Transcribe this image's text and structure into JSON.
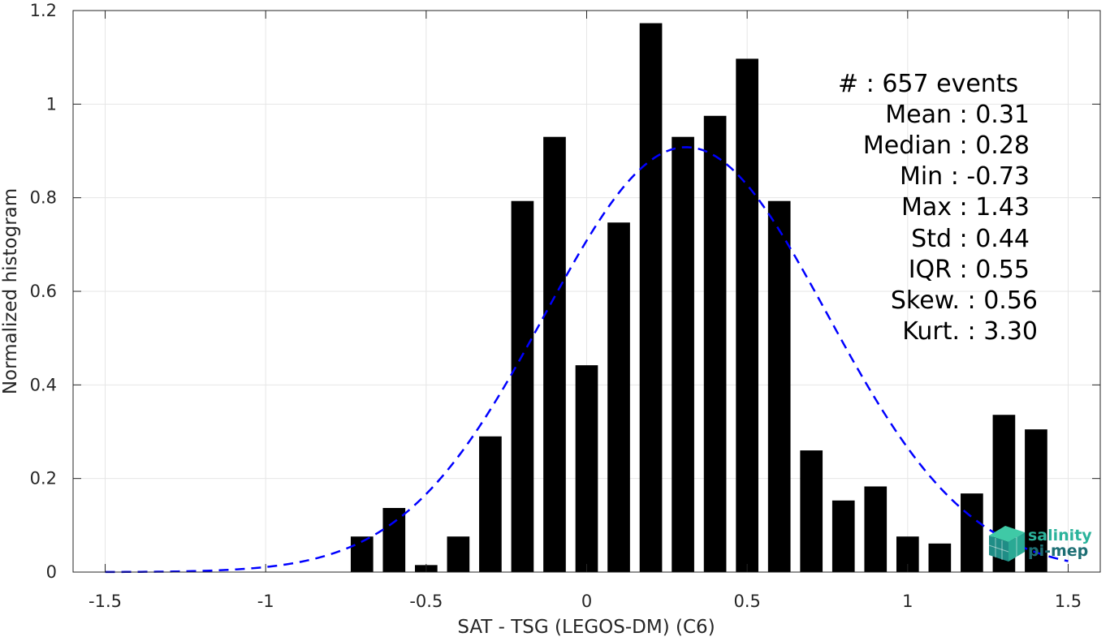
{
  "chart_data": {
    "type": "bar",
    "xlabel": "SAT - TSG (LEGOS-DM) (C6)",
    "ylabel": "Normalized histogram",
    "xlim": [
      -1.6,
      1.6
    ],
    "ylim": [
      0,
      1.2
    ],
    "xticks": [
      -1.5,
      -1,
      -0.5,
      0,
      0.5,
      1,
      1.5
    ],
    "xtick_labels": [
      "-1.5",
      "-1",
      "-0.5",
      "0",
      "0.5",
      "1",
      "1.5"
    ],
    "yticks": [
      0,
      0.2,
      0.4,
      0.6,
      0.8,
      1,
      1.2
    ],
    "ytick_labels": [
      "0",
      "0.2",
      "0.4",
      "0.6",
      "0.8",
      "1",
      "1.2"
    ],
    "grid": true,
    "bar_width": 0.07,
    "bars": {
      "x": [
        -0.7,
        -0.6,
        -0.5,
        -0.4,
        -0.3,
        -0.2,
        -0.1,
        0.0,
        0.1,
        0.2,
        0.3,
        0.4,
        0.5,
        0.6,
        0.7,
        0.8,
        0.9,
        1.0,
        1.1,
        1.2,
        1.3,
        1.4
      ],
      "values": [
        0.076,
        0.137,
        0.015,
        0.076,
        0.29,
        0.793,
        0.93,
        0.442,
        0.747,
        1.173,
        0.93,
        0.975,
        1.097,
        0.793,
        0.26,
        0.153,
        0.183,
        0.076,
        0.061,
        0.168,
        0.336,
        0.305
      ],
      "color": "#000000"
    },
    "fit_curve": {
      "style": "dashed",
      "color": "#0000ff",
      "mean": 0.31,
      "std": 0.44,
      "x_range": [
        -1.5,
        1.5
      ]
    },
    "stats": [
      {
        "label": "#  : 657 events"
      },
      {
        "label": "Mean : 0.31"
      },
      {
        "label": "Median : 0.28"
      },
      {
        "label": "Min : -0.73"
      },
      {
        "label": "Max : 1.43"
      },
      {
        "label": "Std : 0.44"
      },
      {
        "label": "IQR : 0.55"
      },
      {
        "label": "Skew. : 0.56"
      },
      {
        "label": "Kurt. : 3.30"
      }
    ]
  },
  "logo": {
    "line1": "salinity",
    "line2": "pi-mep",
    "color1": "#2bb39b",
    "color2": "#1e6f74"
  }
}
